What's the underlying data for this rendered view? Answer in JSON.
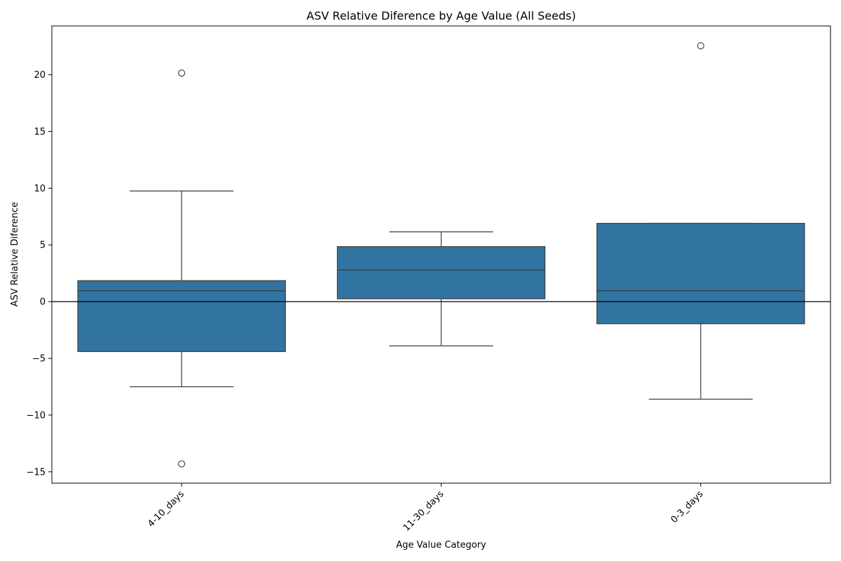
{
  "chart_data": {
    "type": "box",
    "title": "ASV Relative Diference by Age Value (All Seeds)",
    "xlabel": "Age Value Category",
    "ylabel": "ASV Relative Diference",
    "ylim": [
      -16,
      24.3
    ],
    "yticks": [
      -15,
      -10,
      -5,
      0,
      5,
      10,
      15,
      20
    ],
    "ytick_labels": [
      "−15",
      "−10",
      "−5",
      "0",
      "5",
      "10",
      "15",
      "20"
    ],
    "grid": false,
    "reference_line_y": 0,
    "box_color": "#3274a1",
    "categories": [
      "4-10_days",
      "11-30_days",
      "0-3_days"
    ],
    "boxes": [
      {
        "category": "4-10_days",
        "whislo": -7.5,
        "q1": -4.4,
        "median": 0.95,
        "q3": 1.85,
        "whishi": 9.75,
        "fliers": [
          20.15,
          -14.3
        ]
      },
      {
        "category": "11-30_days",
        "whislo": -3.9,
        "q1": 0.25,
        "median": 2.8,
        "q3": 4.85,
        "whishi": 6.15,
        "fliers": []
      },
      {
        "category": "0-3_days",
        "whislo": -8.6,
        "q1": -1.95,
        "median": 0.95,
        "q3": 6.9,
        "whishi": 6.9,
        "fliers": [
          22.55
        ]
      }
    ]
  }
}
